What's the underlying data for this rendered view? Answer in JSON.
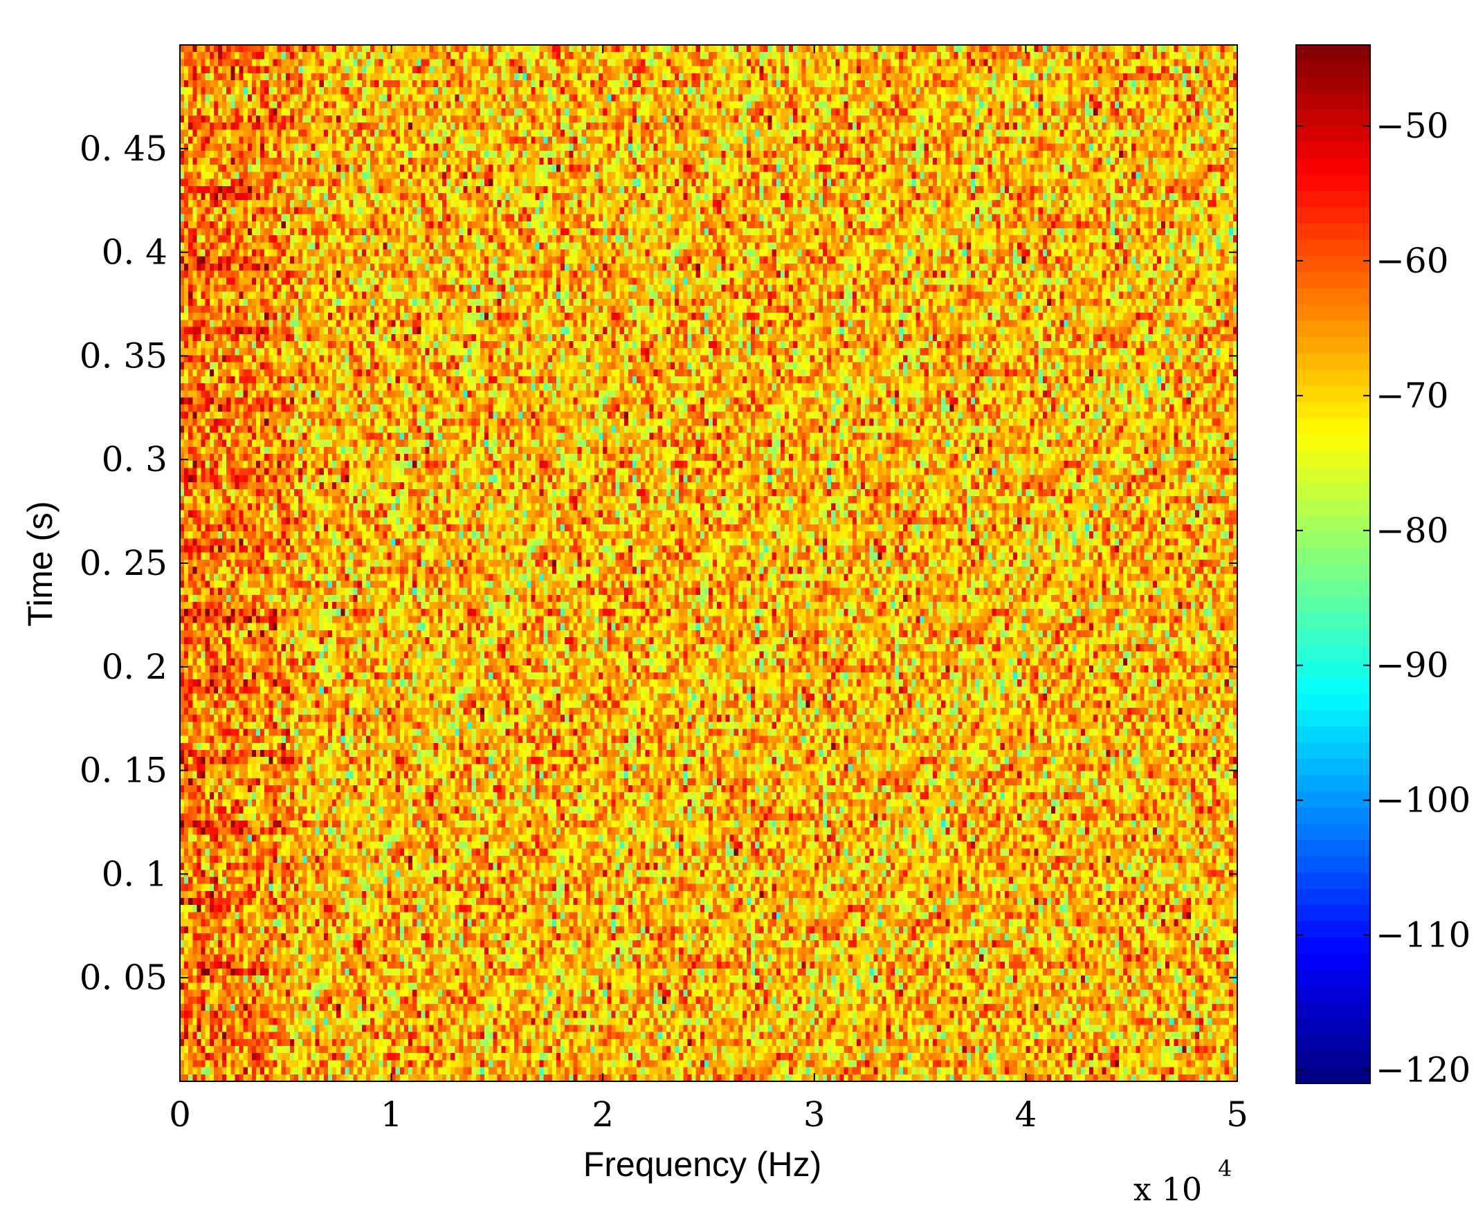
{
  "chart_data": {
    "type": "heatmap",
    "title": "",
    "xlabel": "Frequency (Hz)",
    "ylabel": "Time (s)",
    "x_exponent_base": "x  10",
    "x_exponent_power": "4",
    "x_scale_factor": 10000,
    "xlim": [
      0,
      5
    ],
    "ylim": [
      0,
      0.5
    ],
    "x_ticks": [
      0,
      1,
      2,
      3,
      4,
      5
    ],
    "x_tick_labels": [
      "0",
      "1",
      "2",
      "3",
      "4",
      "5"
    ],
    "y_ticks": [
      0.05,
      0.1,
      0.15,
      0.2,
      0.25,
      0.3,
      0.35,
      0.4,
      0.45
    ],
    "y_tick_labels": [
      "0. 05",
      "0. 1",
      "0. 15",
      "0. 2",
      "0. 25",
      "0. 3",
      "0. 35",
      "0. 4",
      "0. 45"
    ],
    "colormap": "jet",
    "colorbar": {
      "clim": [
        -121,
        -44
      ],
      "ticks": [
        -50,
        -60,
        -70,
        -80,
        -90,
        -100,
        -110,
        -120
      ],
      "tick_labels": [
        "−50",
        "−60",
        "−70",
        "−80",
        "−90",
        "−100",
        "−110",
        "−120"
      ]
    },
    "grid": false,
    "description_of_values": {
      "background_level_db": -68,
      "strong_band_x_range": [
        0,
        0.55
      ],
      "strong_band_level_db": -57,
      "noise_spread_db": 7,
      "time_resolution_s": 0.0034,
      "frequency_resolution": 0.02
    }
  }
}
